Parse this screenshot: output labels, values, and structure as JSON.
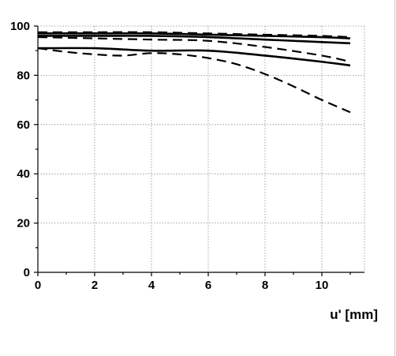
{
  "chart_data": {
    "type": "line",
    "title": "",
    "xlabel": "u' [mm]",
    "ylabel": "",
    "xlim": [
      0,
      11.5
    ],
    "ylim": [
      0,
      100
    ],
    "x_ticks": [
      0,
      2,
      4,
      6,
      8,
      10
    ],
    "y_ticks": [
      0,
      20,
      40,
      60,
      80,
      100
    ],
    "grid": true,
    "legend": "none",
    "series": [
      {
        "style": "solid",
        "x": [
          0,
          2,
          4,
          6,
          8,
          10,
          11
        ],
        "y": [
          97,
          97,
          97,
          96.5,
          96,
          95.5,
          95
        ]
      },
      {
        "style": "solid",
        "x": [
          0,
          2,
          4,
          6,
          8,
          10,
          11
        ],
        "y": [
          96,
          96,
          96,
          95.5,
          94.5,
          93.5,
          93
        ]
      },
      {
        "style": "dashed",
        "x": [
          0,
          2,
          4,
          6,
          8,
          10,
          11
        ],
        "y": [
          97.5,
          97.5,
          97.5,
          97,
          96.5,
          96,
          95.5
        ]
      },
      {
        "style": "dashed",
        "x": [
          0,
          2,
          4,
          6,
          8,
          10,
          11
        ],
        "y": [
          95.5,
          95,
          94.5,
          94,
          91.5,
          88,
          85.5
        ]
      },
      {
        "style": "solid",
        "x": [
          0,
          2,
          4,
          6,
          8,
          10,
          11
        ],
        "y": [
          91,
          91,
          90,
          90,
          88,
          85.5,
          84
        ]
      },
      {
        "style": "dashed",
        "x": [
          0,
          1,
          2,
          3,
          4,
          5,
          6,
          7,
          8,
          9,
          10,
          11
        ],
        "y": [
          91,
          89.5,
          88.5,
          88,
          89,
          88.5,
          87,
          84.5,
          80.5,
          75.5,
          70,
          65
        ]
      }
    ]
  }
}
